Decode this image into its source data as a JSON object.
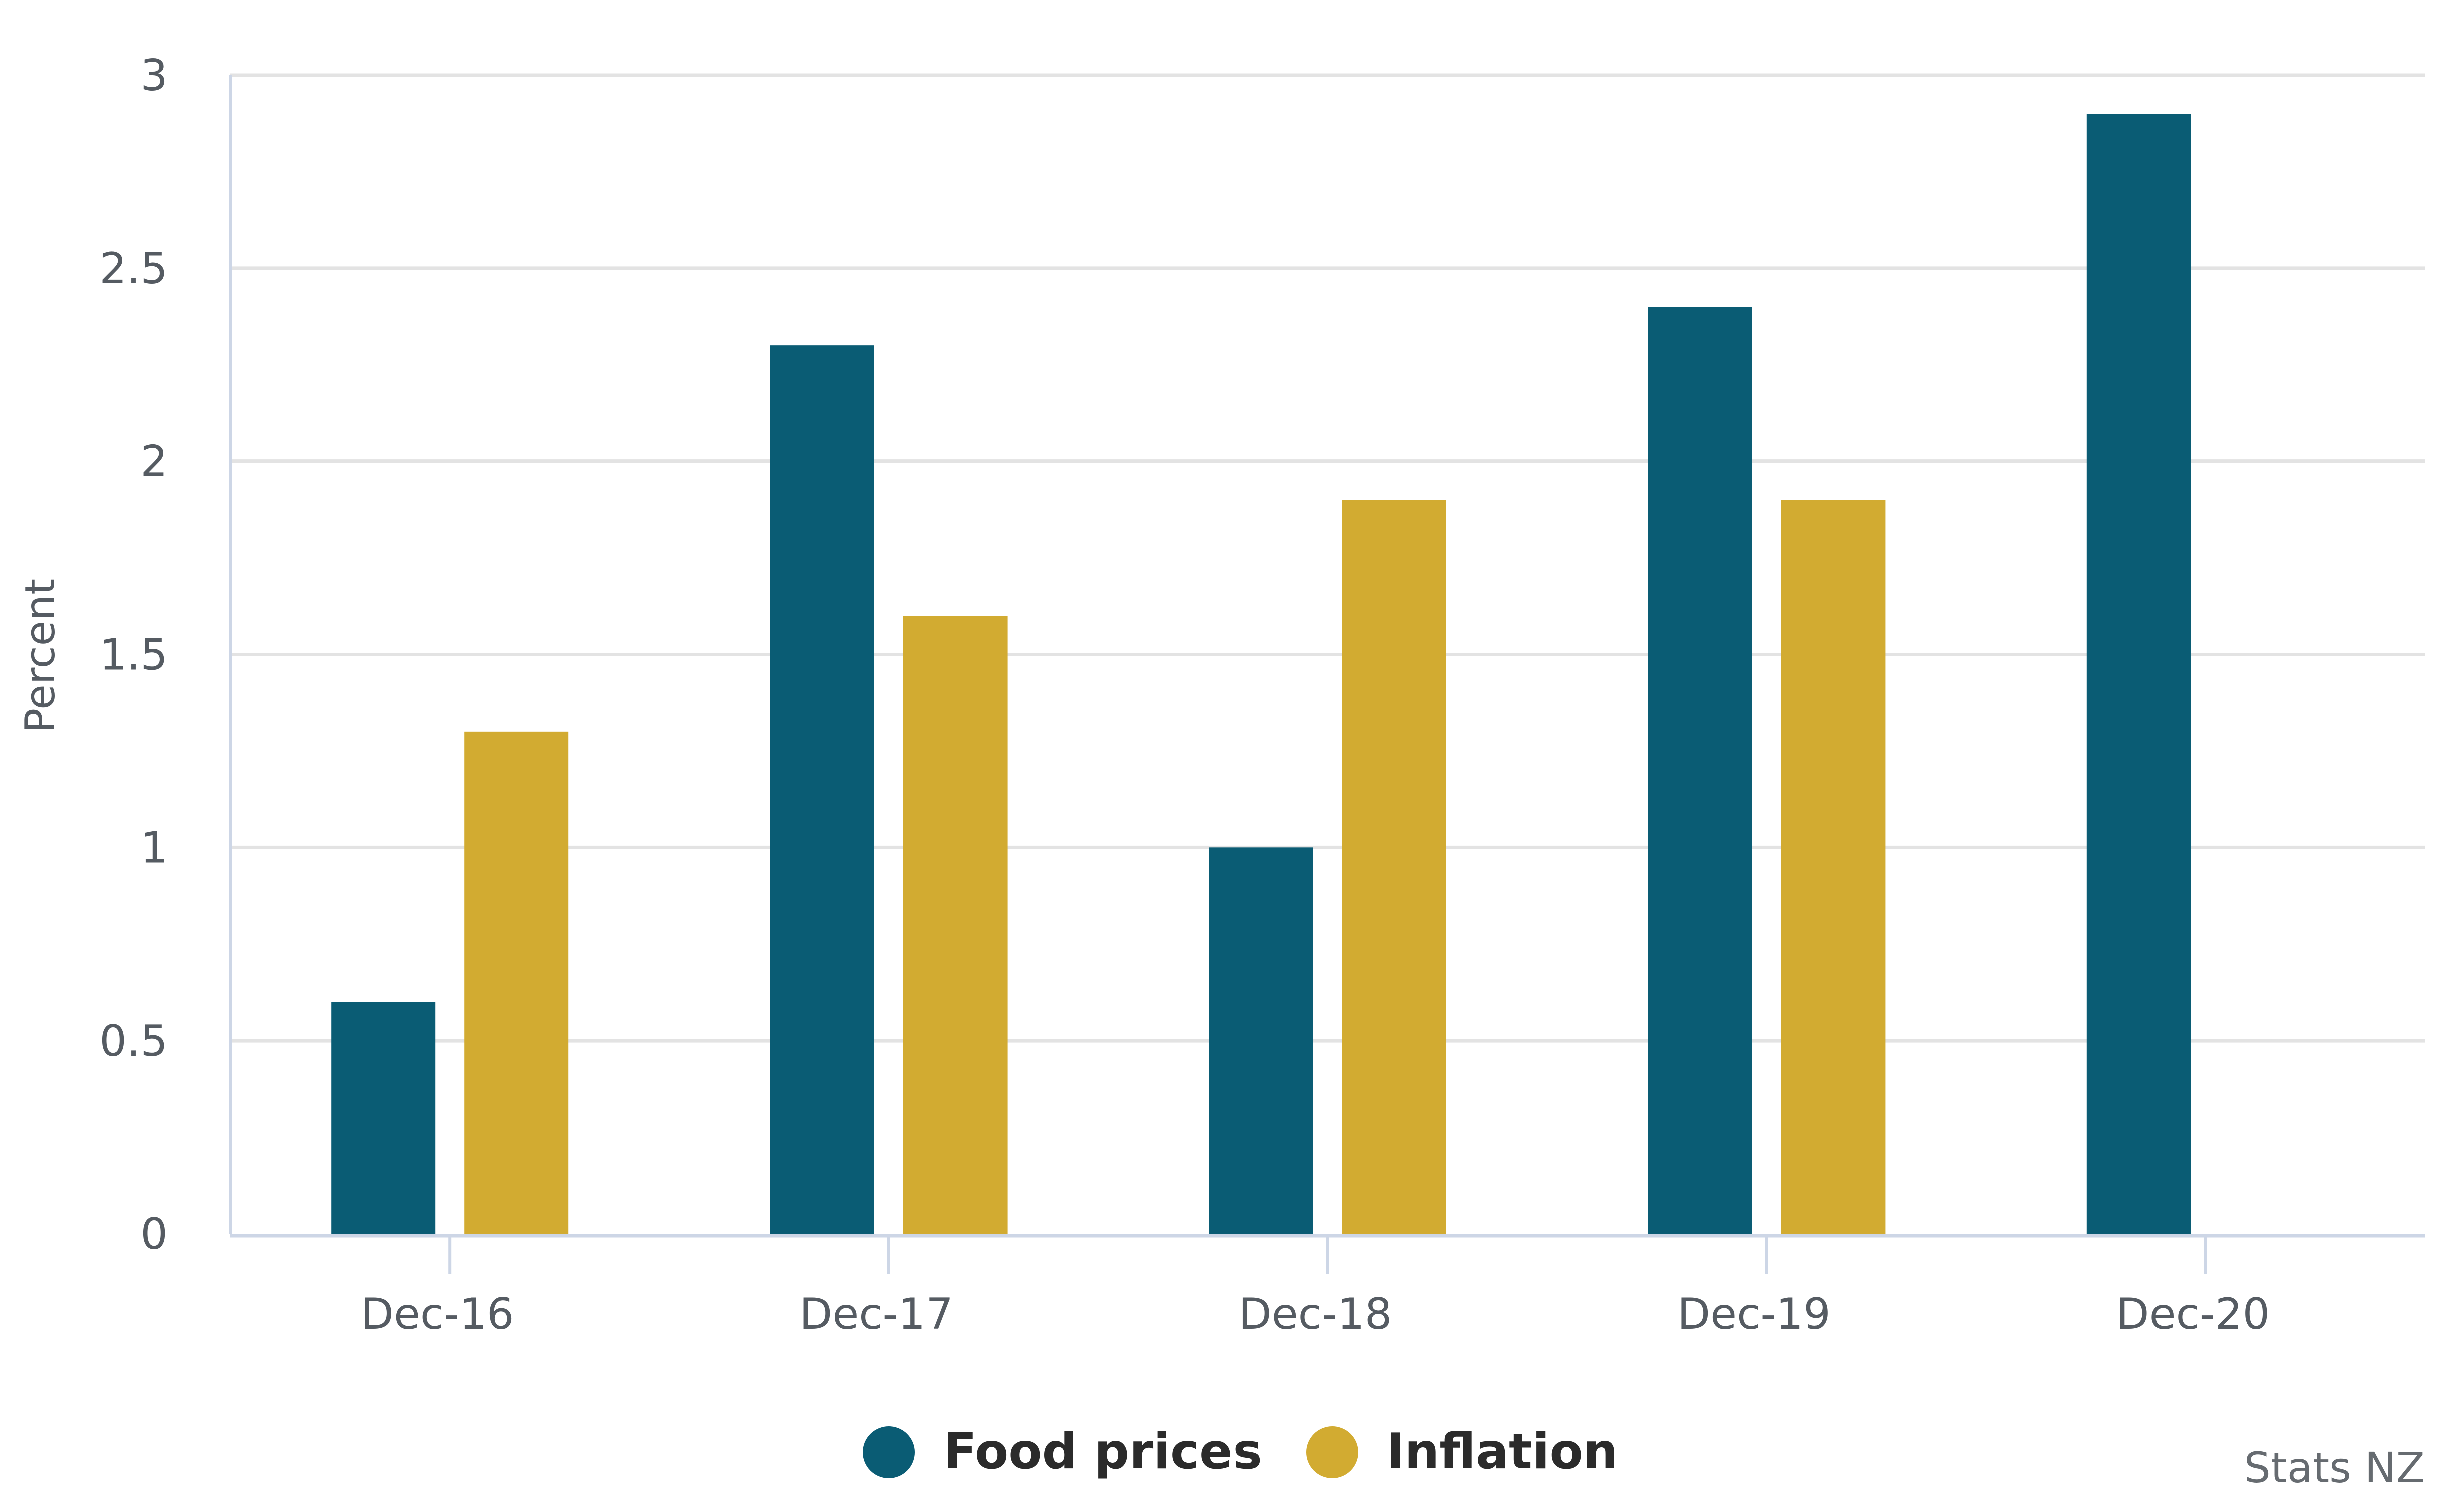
{
  "chart_data": {
    "type": "bar",
    "categories": [
      "Dec-16",
      "Dec-17",
      "Dec-18",
      "Dec-19",
      "Dec-20"
    ],
    "series": [
      {
        "name": "Food prices",
        "color": "#0a5c74",
        "values": [
          0.6,
          2.3,
          1.0,
          2.4,
          2.9
        ]
      },
      {
        "name": "Inflation",
        "color": "#d2ab31",
        "values": [
          1.3,
          1.6,
          1.9,
          1.9,
          null
        ]
      }
    ],
    "ylabel": "Percent",
    "xlabel": "",
    "ylim": [
      0,
      3
    ],
    "yticks": [
      "0",
      "0.5",
      "1",
      "1.5",
      "2",
      "2.5",
      "3"
    ],
    "grid": true,
    "legend_position": "bottom-center",
    "credit": "Stats NZ"
  }
}
